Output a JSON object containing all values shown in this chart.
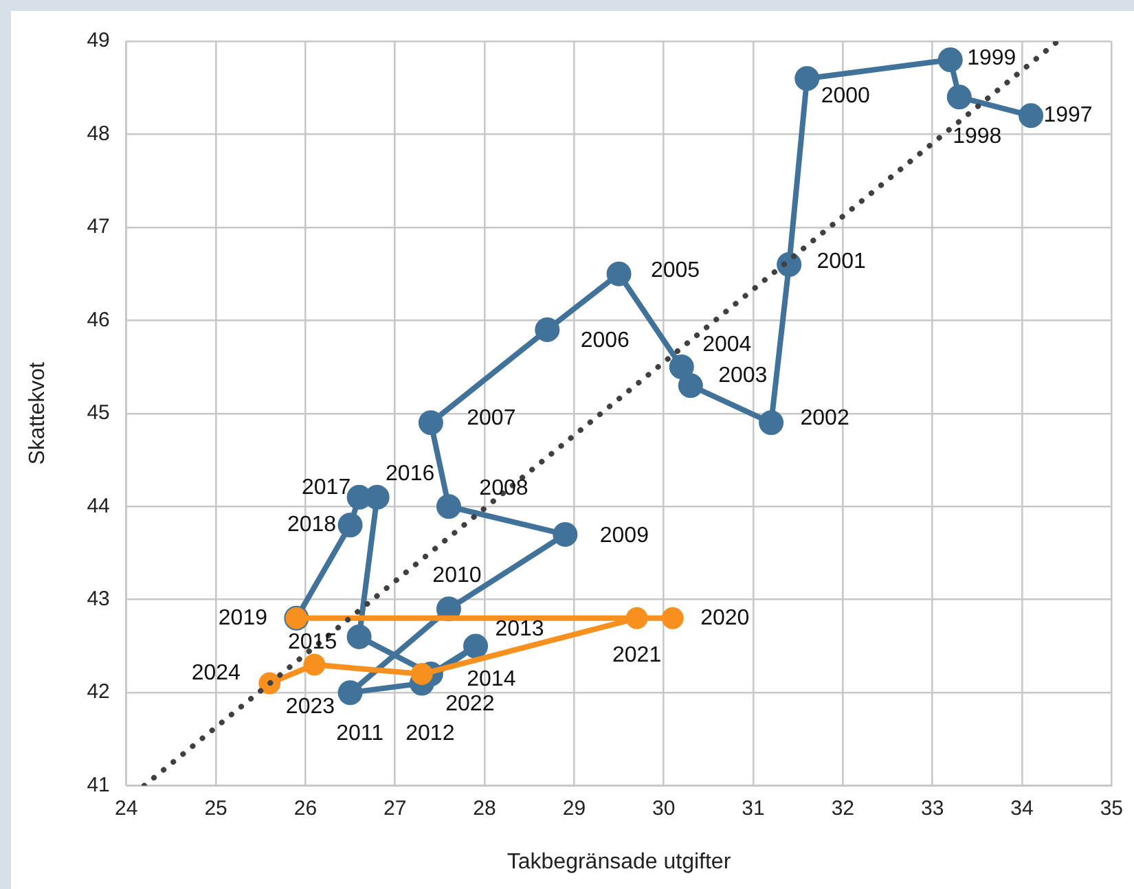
{
  "chart_data": {
    "type": "line",
    "xlabel": "Takbegränsade utgifter",
    "ylabel": "Skattekvot",
    "xlim": [
      24,
      35
    ],
    "xticks": [
      24,
      25,
      26,
      27,
      28,
      29,
      30,
      31,
      32,
      33,
      34,
      35
    ],
    "ylim": [
      41,
      49
    ],
    "yticks": [
      41,
      42,
      43,
      44,
      45,
      46,
      47,
      48,
      49
    ],
    "grid": true,
    "legend": false,
    "marker": "circle",
    "line_style": "solid",
    "series": [
      {
        "color": "#41729a",
        "x": [
          34.1,
          33.3,
          33.2,
          31.6,
          31.4,
          31.2,
          30.3,
          30.2,
          29.5,
          28.7,
          27.4,
          27.6,
          28.9,
          27.6,
          26.5,
          27.3,
          27.9,
          27.4,
          26.6,
          26.8,
          26.6,
          26.5,
          25.9
        ],
        "values": [
          48.2,
          48.4,
          48.8,
          48.6,
          46.6,
          44.9,
          45.3,
          45.5,
          46.5,
          45.9,
          44.9,
          44.0,
          43.7,
          42.9,
          42.0,
          42.1,
          42.5,
          42.2,
          42.6,
          44.1,
          44.1,
          43.8,
          42.8
        ]
      },
      {
        "color": "#f7901e",
        "x": [
          25.9,
          30.1,
          29.7,
          27.3,
          26.1,
          25.6
        ],
        "values": [
          42.8,
          42.8,
          42.8,
          42.2,
          42.3,
          42.1
        ]
      },
      {
        "color": "#404040",
        "marker": "none",
        "line_style": "dotted",
        "x": [
          24.2,
          34.4
        ],
        "values": [
          41.0,
          49.0
        ]
      }
    ],
    "annotations": [
      {
        "text": "1997",
        "x": 34.1,
        "y": 48.2
      },
      {
        "text": "1998",
        "x": 33.3,
        "y": 48.4
      },
      {
        "text": "1999",
        "x": 33.2,
        "y": 48.8
      },
      {
        "text": "2000",
        "x": 31.6,
        "y": 48.6
      },
      {
        "text": "2001",
        "x": 31.4,
        "y": 46.6
      },
      {
        "text": "2002",
        "x": 31.2,
        "y": 44.9
      },
      {
        "text": "2003",
        "x": 30.3,
        "y": 45.3
      },
      {
        "text": "2004",
        "x": 30.2,
        "y": 45.5
      },
      {
        "text": "2005",
        "x": 29.5,
        "y": 46.5
      },
      {
        "text": "2006",
        "x": 28.7,
        "y": 45.9
      },
      {
        "text": "2007",
        "x": 27.4,
        "y": 44.9
      },
      {
        "text": "2008",
        "x": 27.6,
        "y": 44.0
      },
      {
        "text": "2009",
        "x": 28.9,
        "y": 43.7
      },
      {
        "text": "2010",
        "x": 27.6,
        "y": 42.9
      },
      {
        "text": "2011",
        "x": 26.5,
        "y": 42.0
      },
      {
        "text": "2012",
        "x": 27.3,
        "y": 42.1
      },
      {
        "text": "2013",
        "x": 27.9,
        "y": 42.5
      },
      {
        "text": "2014",
        "x": 27.4,
        "y": 42.2
      },
      {
        "text": "2015",
        "x": 26.6,
        "y": 42.6
      },
      {
        "text": "2016",
        "x": 26.8,
        "y": 44.1
      },
      {
        "text": "2017",
        "x": 26.6,
        "y": 44.1
      },
      {
        "text": "2018",
        "x": 26.5,
        "y": 43.8
      },
      {
        "text": "2019",
        "x": 25.9,
        "y": 42.8
      },
      {
        "text": "2020",
        "x": 30.1,
        "y": 42.8
      },
      {
        "text": "2021",
        "x": 29.7,
        "y": 42.8
      },
      {
        "text": "2022",
        "x": 27.3,
        "y": 42.2
      },
      {
        "text": "2023",
        "x": 26.1,
        "y": 42.3
      },
      {
        "text": "2024",
        "x": 25.6,
        "y": 42.1
      }
    ]
  }
}
